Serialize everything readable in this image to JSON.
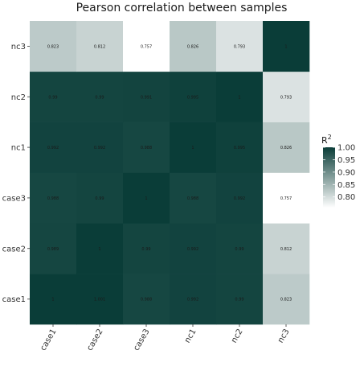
{
  "chart_data": {
    "type": "heatmap",
    "title": "Pearson correlation between samples",
    "x_categories": [
      "case1",
      "case2",
      "case3",
      "nc1",
      "nc2",
      "nc3"
    ],
    "y_categories": [
      "case1",
      "case2",
      "case3",
      "nc1",
      "nc2",
      "nc3"
    ],
    "values": [
      [
        1,
        1.001,
        0.988,
        0.992,
        0.99,
        0.823
      ],
      [
        0.989,
        1,
        0.99,
        0.992,
        0.99,
        0.812
      ],
      [
        0.988,
        0.99,
        1,
        0.988,
        0.992,
        0.757
      ],
      [
        0.992,
        0.992,
        0.988,
        1,
        0.995,
        0.826
      ],
      [
        0.99,
        0.99,
        0.991,
        0.995,
        1,
        0.793
      ],
      [
        0.823,
        0.812,
        0.757,
        0.826,
        0.793,
        1
      ]
    ],
    "value_labels": [
      [
        "1",
        "1.001",
        "0.988",
        "0.992",
        "0.99",
        "0.823"
      ],
      [
        "0.989",
        "1",
        "0.99",
        "0.992",
        "0.99",
        "0.812"
      ],
      [
        "0.988",
        "0.99",
        "1",
        "0.988",
        "0.992",
        "0.757"
      ],
      [
        "0.992",
        "0.992",
        "0.988",
        "1",
        "0.995",
        "0.826"
      ],
      [
        "0.99",
        "0.99",
        "0.991",
        "0.995",
        "1",
        "0.793"
      ],
      [
        "0.823",
        "0.812",
        "0.757",
        "0.826",
        "0.793",
        "1"
      ]
    ],
    "legend": {
      "title": "R",
      "title_superscript": "2",
      "placement": "right",
      "ticks": [
        1.0,
        0.95,
        0.9,
        0.85,
        0.8
      ],
      "tick_labels": [
        "1.00",
        "0.95",
        "0.90",
        "0.85",
        "0.80"
      ],
      "range": [
        0.757,
        1.0
      ]
    },
    "color_low": "#ffffff",
    "color_high": "#0a3d38",
    "grid": false
  }
}
